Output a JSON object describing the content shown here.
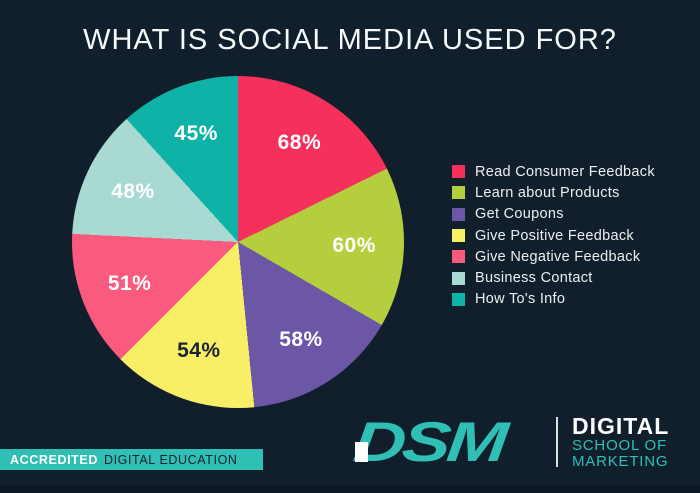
{
  "title": "WHAT IS SOCIAL MEDIA USED FOR?",
  "chart_data": {
    "type": "pie",
    "title": "WHAT IS SOCIAL MEDIA USED FOR?",
    "unit": "%",
    "direction": "clockwise",
    "start_angle_deg": 0,
    "legend_position": "right",
    "slices": [
      {
        "label": "Read Consumer Feedback",
        "value": 68,
        "display": "68%",
        "color": "#F5305D",
        "label_color": "#FFFFFF"
      },
      {
        "label": "Learn about Products",
        "value": 60,
        "display": "60%",
        "color": "#B5CE3E",
        "label_color": "#FFFFFF"
      },
      {
        "label": "Get Coupons",
        "value": 58,
        "display": "58%",
        "color": "#6B57A5",
        "label_color": "#FFFFFF"
      },
      {
        "label": "Give Positive Feedback",
        "value": 54,
        "display": "54%",
        "color": "#F8EF67",
        "label_color": "#1B2531"
      },
      {
        "label": "Give Negative Feedback",
        "value": 51,
        "display": "51%",
        "color": "#F95A7E",
        "label_color": "#FFFFFF"
      },
      {
        "label": "Business Contact",
        "value": 48,
        "display": "48%",
        "color": "#A8DAD3",
        "label_color": "#FFFFFF"
      },
      {
        "label": "How To's Info",
        "value": 45,
        "display": "45%",
        "color": "#0FB2A7",
        "label_color": "#FFFFFF"
      }
    ]
  },
  "footer": {
    "accreditation_highlight": "ACCREDITED",
    "accreditation_rest": "DIGITAL EDUCATION",
    "logo_acronym": "DSM",
    "logo_line1": "DIGITAL",
    "logo_line2": "SCHOOL OF",
    "logo_line3": "MARKETING"
  },
  "colors": {
    "background": "#111F2D",
    "brand_teal": "#2FBFB4",
    "title_text": "#F7F9F9",
    "legend_text": "#EDEFEF",
    "navy_text": "#15212E",
    "footer_strip": "#0C1823"
  }
}
